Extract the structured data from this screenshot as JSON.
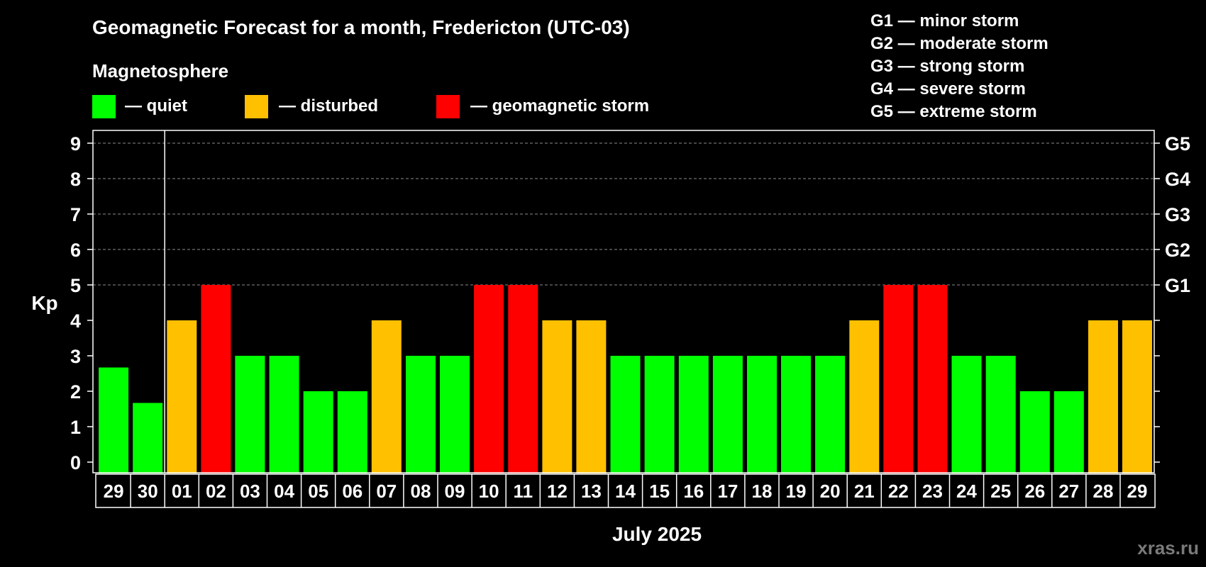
{
  "colors": {
    "quiet": "#00ff00",
    "disturbed": "#ffc000",
    "storm": "#ff0000",
    "background": "#000000",
    "foreground": "#ffffff"
  },
  "legend": {
    "section_title": "Magnetosphere",
    "items": [
      {
        "key": "quiet",
        "label": "— quiet"
      },
      {
        "key": "disturbed",
        "label": "— disturbed"
      },
      {
        "key": "storm",
        "label": "— geomagnetic storm"
      }
    ],
    "g_scale": [
      "G1 — minor storm",
      "G2 — moderate storm",
      "G3 — strong storm",
      "G4 — severe storm",
      "G5 — extreme storm"
    ]
  },
  "watermark": "xras.ru",
  "chart_data": {
    "type": "bar",
    "title": "Geomagnetic Forecast for a month, Fredericton (UTC-03)",
    "xlabel": "July 2025",
    "ylabel": "Kp",
    "ylim": [
      0,
      9
    ],
    "yticks": [
      "0",
      "1",
      "2",
      "3",
      "4",
      "5",
      "6",
      "7",
      "8",
      "9"
    ],
    "grid": "dashed, Kp 5 to 9",
    "right_axis_labels": [
      {
        "kp": 5,
        "label": "G1"
      },
      {
        "kp": 6,
        "label": "G2"
      },
      {
        "kp": 7,
        "label": "G3"
      },
      {
        "kp": 8,
        "label": "G4"
      },
      {
        "kp": 9,
        "label": "G5"
      }
    ],
    "month_boundary_after_index": 1,
    "categories": [
      "29",
      "30",
      "01",
      "02",
      "03",
      "04",
      "05",
      "06",
      "07",
      "08",
      "09",
      "10",
      "11",
      "12",
      "13",
      "14",
      "15",
      "16",
      "17",
      "18",
      "19",
      "20",
      "21",
      "22",
      "23",
      "24",
      "25",
      "26",
      "27",
      "28",
      "29"
    ],
    "values": [
      2.67,
      1.67,
      4,
      5,
      3,
      3,
      2,
      2,
      4,
      3,
      3,
      5,
      5,
      4,
      4,
      3,
      3,
      3,
      3,
      3,
      3,
      3,
      4,
      5,
      5,
      3,
      3,
      2,
      2,
      4,
      4
    ],
    "levels": [
      "quiet",
      "quiet",
      "disturbed",
      "storm",
      "quiet",
      "quiet",
      "quiet",
      "quiet",
      "disturbed",
      "quiet",
      "quiet",
      "storm",
      "storm",
      "disturbed",
      "disturbed",
      "quiet",
      "quiet",
      "quiet",
      "quiet",
      "quiet",
      "quiet",
      "quiet",
      "disturbed",
      "storm",
      "storm",
      "quiet",
      "quiet",
      "quiet",
      "quiet",
      "disturbed",
      "disturbed"
    ]
  }
}
